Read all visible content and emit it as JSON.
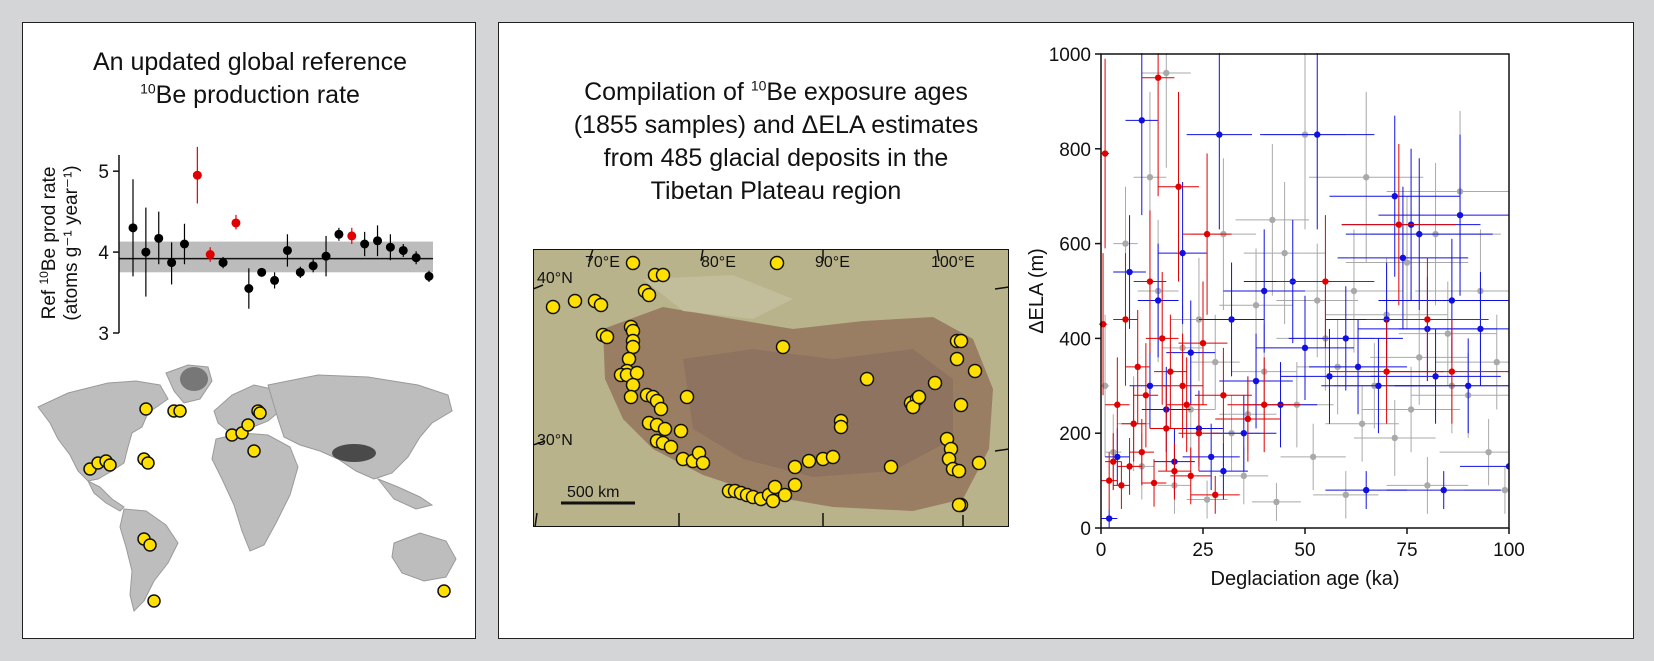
{
  "left_panel": {
    "title_line1": "An updated global reference",
    "title_line2_sup": "10",
    "title_line2_rest": "Be production rate",
    "chart_data": {
      "type": "scatter",
      "ylabel_line1_pre": "Ref ",
      "ylabel_line1_sup": "10",
      "ylabel_line1_post": "Be prod rate",
      "ylabel_line2": "(atoms g⁻¹ year⁻¹)",
      "ylim": [
        3,
        5.2
      ],
      "yticks": [
        "3",
        "4",
        "5"
      ],
      "reference_value": 3.92,
      "reference_band": [
        3.75,
        4.13
      ],
      "points": [
        {
          "value": 4.3,
          "low": 3.7,
          "high": 4.9,
          "color": "#000000"
        },
        {
          "value": 4.0,
          "low": 3.45,
          "high": 4.55,
          "color": "#000000"
        },
        {
          "value": 4.17,
          "low": 3.85,
          "high": 4.5,
          "color": "#000000"
        },
        {
          "value": 3.87,
          "low": 3.6,
          "high": 4.12,
          "color": "#000000"
        },
        {
          "value": 4.1,
          "low": 3.85,
          "high": 4.35,
          "color": "#000000"
        },
        {
          "value": 4.95,
          "low": 4.6,
          "high": 5.3,
          "color": "#e00000"
        },
        {
          "value": 3.97,
          "low": 3.88,
          "high": 4.06,
          "color": "#e00000"
        },
        {
          "value": 3.87,
          "low": 3.8,
          "high": 3.94,
          "color": "#000000"
        },
        {
          "value": 4.36,
          "low": 4.28,
          "high": 4.46,
          "color": "#e00000"
        },
        {
          "value": 3.55,
          "low": 3.3,
          "high": 3.8,
          "color": "#000000"
        },
        {
          "value": 3.75,
          "low": 3.7,
          "high": 3.8,
          "color": "#000000"
        },
        {
          "value": 3.65,
          "low": 3.55,
          "high": 3.75,
          "color": "#000000"
        },
        {
          "value": 4.02,
          "low": 3.82,
          "high": 4.22,
          "color": "#000000"
        },
        {
          "value": 3.75,
          "low": 3.68,
          "high": 3.82,
          "color": "#000000"
        },
        {
          "value": 3.83,
          "low": 3.75,
          "high": 3.91,
          "color": "#000000"
        },
        {
          "value": 3.95,
          "low": 3.7,
          "high": 4.2,
          "color": "#000000"
        },
        {
          "value": 4.22,
          "low": 4.14,
          "high": 4.3,
          "color": "#000000"
        },
        {
          "value": 4.2,
          "low": 4.1,
          "high": 4.3,
          "color": "#e00000"
        },
        {
          "value": 4.1,
          "low": 3.95,
          "high": 4.25,
          "color": "#000000"
        },
        {
          "value": 4.14,
          "low": 3.95,
          "high": 4.33,
          "color": "#000000"
        },
        {
          "value": 4.06,
          "low": 3.9,
          "high": 4.22,
          "color": "#000000"
        },
        {
          "value": 4.02,
          "low": 3.94,
          "high": 4.1,
          "color": "#000000"
        },
        {
          "value": 3.93,
          "low": 3.85,
          "high": 4.01,
          "color": "#000000"
        },
        {
          "value": 3.7,
          "low": 3.63,
          "high": 3.77,
          "color": "#000000"
        }
      ]
    },
    "world_map": {
      "landmass_color": "#bdbdbd",
      "highland_color": "#4a4a4a",
      "marker_color": "#ffe000"
    }
  },
  "middle": {
    "title_line1_pre": "Compilation of ",
    "title_line1_sup": "10",
    "title_line1_post": "Be exposure ages",
    "title_line2": "(1855 samples) and ΔELA estimates",
    "title_line3": "from 485 glacial deposits in the",
    "title_line4": "Tibetan Plateau region",
    "map": {
      "lon_labels": [
        "70°E",
        "80°E",
        "90°E",
        "100°E"
      ],
      "lat_labels": [
        "40°N",
        "30°N"
      ],
      "scale_label": "500 km",
      "lowland_color": "#b8b38a",
      "plateau_color": "#9a7e64",
      "marker_color": "#ffe000"
    }
  },
  "right_chart": {
    "chart_data": {
      "type": "scatter",
      "xlabel": "Deglaciation age (ka)",
      "ylabel": "ΔELA (m)",
      "xlim": [
        0,
        100
      ],
      "ylim": [
        0,
        1000
      ],
      "xticks": [
        "0",
        "25",
        "50",
        "75",
        "100"
      ],
      "yticks": [
        "0",
        "200",
        "400",
        "600",
        "800",
        "1000"
      ],
      "series": [
        {
          "color": "#a9a9a9",
          "points": [
            [
              1,
              300,
              1,
              150
            ],
            [
              3,
              160,
              2,
              80
            ],
            [
              6,
              600,
              3,
              120
            ],
            [
              8,
              220,
              4,
              100
            ],
            [
              10,
              130,
              3,
              70
            ],
            [
              12,
              740,
              4,
              180
            ],
            [
              14,
              500,
              5,
              150
            ],
            [
              16,
              960,
              6,
              200
            ],
            [
              18,
              90,
              4,
              60
            ],
            [
              20,
              380,
              5,
              90
            ],
            [
              22,
              250,
              6,
              110
            ],
            [
              24,
              440,
              7,
              130
            ],
            [
              26,
              60,
              5,
              40
            ],
            [
              28,
              350,
              6,
              100
            ],
            [
              30,
              620,
              8,
              160
            ],
            [
              32,
              200,
              7,
              80
            ],
            [
              35,
              110,
              6,
              60
            ],
            [
              38,
              470,
              9,
              120
            ],
            [
              40,
              330,
              8,
              100
            ],
            [
              43,
              55,
              6,
              40
            ],
            [
              45,
              580,
              10,
              150
            ],
            [
              48,
              260,
              9,
              90
            ],
            [
              50,
              830,
              10,
              200
            ],
            [
              52,
              150,
              8,
              70
            ],
            [
              55,
              400,
              12,
              110
            ],
            [
              58,
              340,
              10,
              100
            ],
            [
              60,
              70,
              8,
              50
            ],
            [
              62,
              500,
              12,
              130
            ],
            [
              65,
              740,
              14,
              180
            ],
            [
              67,
              300,
              10,
              90
            ],
            [
              70,
              450,
              15,
              120
            ],
            [
              72,
              190,
              10,
              80
            ],
            [
              75,
              560,
              15,
              140
            ],
            [
              78,
              360,
              12,
              100
            ],
            [
              80,
              90,
              10,
              60
            ],
            [
              82,
              620,
              16,
              150
            ],
            [
              85,
              410,
              12,
              110
            ],
            [
              88,
              710,
              18,
              170
            ],
            [
              90,
              280,
              14,
              90
            ],
            [
              93,
              500,
              16,
              130
            ],
            [
              95,
              160,
              12,
              70
            ],
            [
              97,
              350,
              15,
              100
            ],
            [
              99,
              80,
              10,
              50
            ],
            [
              36,
              240,
              7,
              80
            ],
            [
              42,
              650,
              9,
              160
            ],
            [
              53,
              480,
              10,
              120
            ],
            [
              64,
              220,
              9,
              80
            ],
            [
              76,
              250,
              12,
              90
            ],
            [
              86,
              300,
              14,
              100
            ]
          ]
        },
        {
          "color": "#1010e0",
          "points": [
            [
              2,
              20,
              2,
              20
            ],
            [
              4,
              150,
              3,
              60
            ],
            [
              7,
              540,
              4,
              120
            ],
            [
              10,
              860,
              4,
              200
            ],
            [
              12,
              300,
              5,
              90
            ],
            [
              14,
              480,
              5,
              120
            ],
            [
              16,
              250,
              6,
              90
            ],
            [
              18,
              140,
              5,
              70
            ],
            [
              20,
              580,
              6,
              150
            ],
            [
              22,
              370,
              6,
              110
            ],
            [
              24,
              210,
              6,
              80
            ],
            [
              27,
              150,
              7,
              70
            ],
            [
              29,
              830,
              8,
              200
            ],
            [
              30,
              120,
              6,
              60
            ],
            [
              32,
              440,
              8,
              120
            ],
            [
              35,
              200,
              8,
              80
            ],
            [
              38,
              310,
              9,
              100
            ],
            [
              40,
              500,
              10,
              130
            ],
            [
              44,
              260,
              9,
              90
            ],
            [
              47,
              520,
              12,
              130
            ],
            [
              50,
              380,
              12,
              110
            ],
            [
              53,
              830,
              14,
              200
            ],
            [
              56,
              320,
              12,
              100
            ],
            [
              60,
              400,
              14,
              110
            ],
            [
              63,
              340,
              12,
              100
            ],
            [
              65,
              80,
              10,
              40
            ],
            [
              68,
              300,
              14,
              100
            ],
            [
              70,
              440,
              15,
              120
            ],
            [
              72,
              700,
              16,
              170
            ],
            [
              74,
              570,
              16,
              150
            ],
            [
              76,
              640,
              17,
              160
            ],
            [
              78,
              620,
              18,
              160
            ],
            [
              80,
              420,
              17,
              110
            ],
            [
              82,
              320,
              16,
              100
            ],
            [
              84,
              80,
              14,
              40
            ],
            [
              86,
              480,
              18,
              130
            ],
            [
              88,
              660,
              20,
              170
            ],
            [
              90,
              300,
              18,
              100
            ],
            [
              93,
              420,
              20,
              120
            ],
            [
              100,
              130,
              12,
              60
            ]
          ]
        },
        {
          "color": "#e00000",
          "points": [
            [
              0.5,
              430,
              1,
              150
            ],
            [
              1,
              790,
              1,
              200
            ],
            [
              2,
              100,
              2,
              60
            ],
            [
              3,
              140,
              2,
              60
            ],
            [
              4,
              260,
              3,
              100
            ],
            [
              5,
              90,
              2,
              50
            ],
            [
              6,
              440,
              3,
              140
            ],
            [
              7,
              130,
              3,
              60
            ],
            [
              8,
              220,
              3,
              80
            ],
            [
              9,
              340,
              3,
              120
            ],
            [
              10,
              160,
              3,
              70
            ],
            [
              11,
              280,
              3,
              110
            ],
            [
              12,
              520,
              4,
              150
            ],
            [
              13,
              95,
              3,
              50
            ],
            [
              14,
              950,
              4,
              250
            ],
            [
              15,
              400,
              4,
              140
            ],
            [
              16,
              210,
              4,
              90
            ],
            [
              17,
              330,
              4,
              120
            ],
            [
              18,
              120,
              4,
              60
            ],
            [
              19,
              720,
              5,
              200
            ],
            [
              20,
              300,
              5,
              110
            ],
            [
              21,
              260,
              5,
              100
            ],
            [
              22,
              110,
              5,
              60
            ],
            [
              24,
              200,
              5,
              80
            ],
            [
              25,
              390,
              6,
              130
            ],
            [
              26,
              620,
              6,
              170
            ],
            [
              28,
              70,
              6,
              40
            ],
            [
              30,
              280,
              7,
              100
            ],
            [
              36,
              230,
              8,
              90
            ],
            [
              40,
              260,
              9,
              100
            ],
            [
              55,
              520,
              12,
              140
            ],
            [
              70,
              330,
              14,
              110
            ],
            [
              73,
              640,
              14,
              170
            ],
            [
              80,
              440,
              15,
              130
            ],
            [
              86,
              330,
              16,
              110
            ]
          ]
        }
      ]
    }
  }
}
